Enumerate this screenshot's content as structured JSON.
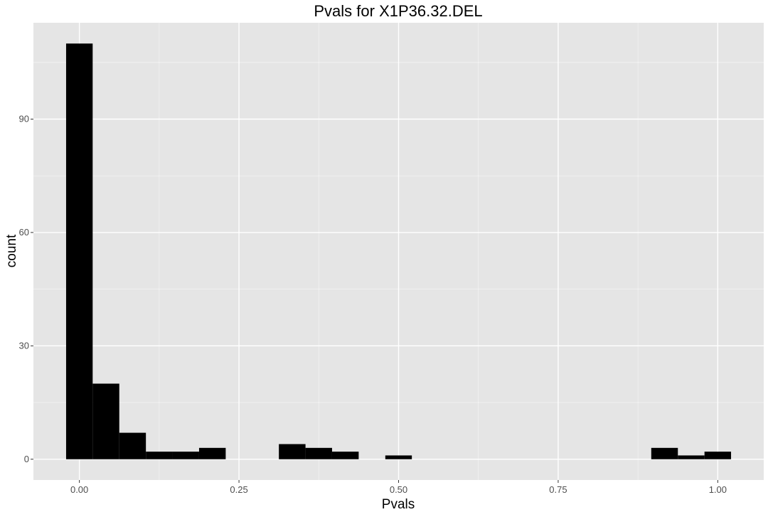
{
  "chart_data": {
    "type": "bar",
    "title": "Pvals for X1P36.32.DEL",
    "xlabel": "Pvals",
    "ylabel": "count",
    "bin_width": 0.0417,
    "bins": [
      {
        "x0": -0.0208,
        "x1": 0.0208,
        "count": 110
      },
      {
        "x0": 0.0208,
        "x1": 0.0625,
        "count": 20
      },
      {
        "x0": 0.0625,
        "x1": 0.1042,
        "count": 7
      },
      {
        "x0": 0.1042,
        "x1": 0.1458,
        "count": 2
      },
      {
        "x0": 0.1458,
        "x1": 0.1875,
        "count": 2
      },
      {
        "x0": 0.1875,
        "x1": 0.2292,
        "count": 3
      },
      {
        "x0": 0.3125,
        "x1": 0.3542,
        "count": 4
      },
      {
        "x0": 0.3542,
        "x1": 0.3958,
        "count": 3
      },
      {
        "x0": 0.3958,
        "x1": 0.4375,
        "count": 2
      },
      {
        "x0": 0.4792,
        "x1": 0.5208,
        "count": 1
      },
      {
        "x0": 0.8958,
        "x1": 0.9375,
        "count": 3
      },
      {
        "x0": 0.9375,
        "x1": 0.9792,
        "count": 1
      },
      {
        "x0": 0.9792,
        "x1": 1.0208,
        "count": 2
      }
    ],
    "xlim": [
      -0.072,
      1.072
    ],
    "ylim": [
      -5.5,
      115.5
    ],
    "x_ticks": [
      0,
      0.25,
      0.5,
      0.75,
      1
    ],
    "x_tick_labels": [
      "0.00",
      "0.25",
      "0.50",
      "0.75",
      "1.00"
    ],
    "y_ticks": [
      0,
      30,
      60,
      90
    ],
    "y_tick_labels": [
      "0",
      "30",
      "60",
      "90"
    ],
    "grid": true,
    "colors": {
      "panel": "#e5e5e5",
      "grid_major": "#ffffff",
      "bar_fill": "#000000",
      "tick_text": "#4d4d4d"
    }
  }
}
